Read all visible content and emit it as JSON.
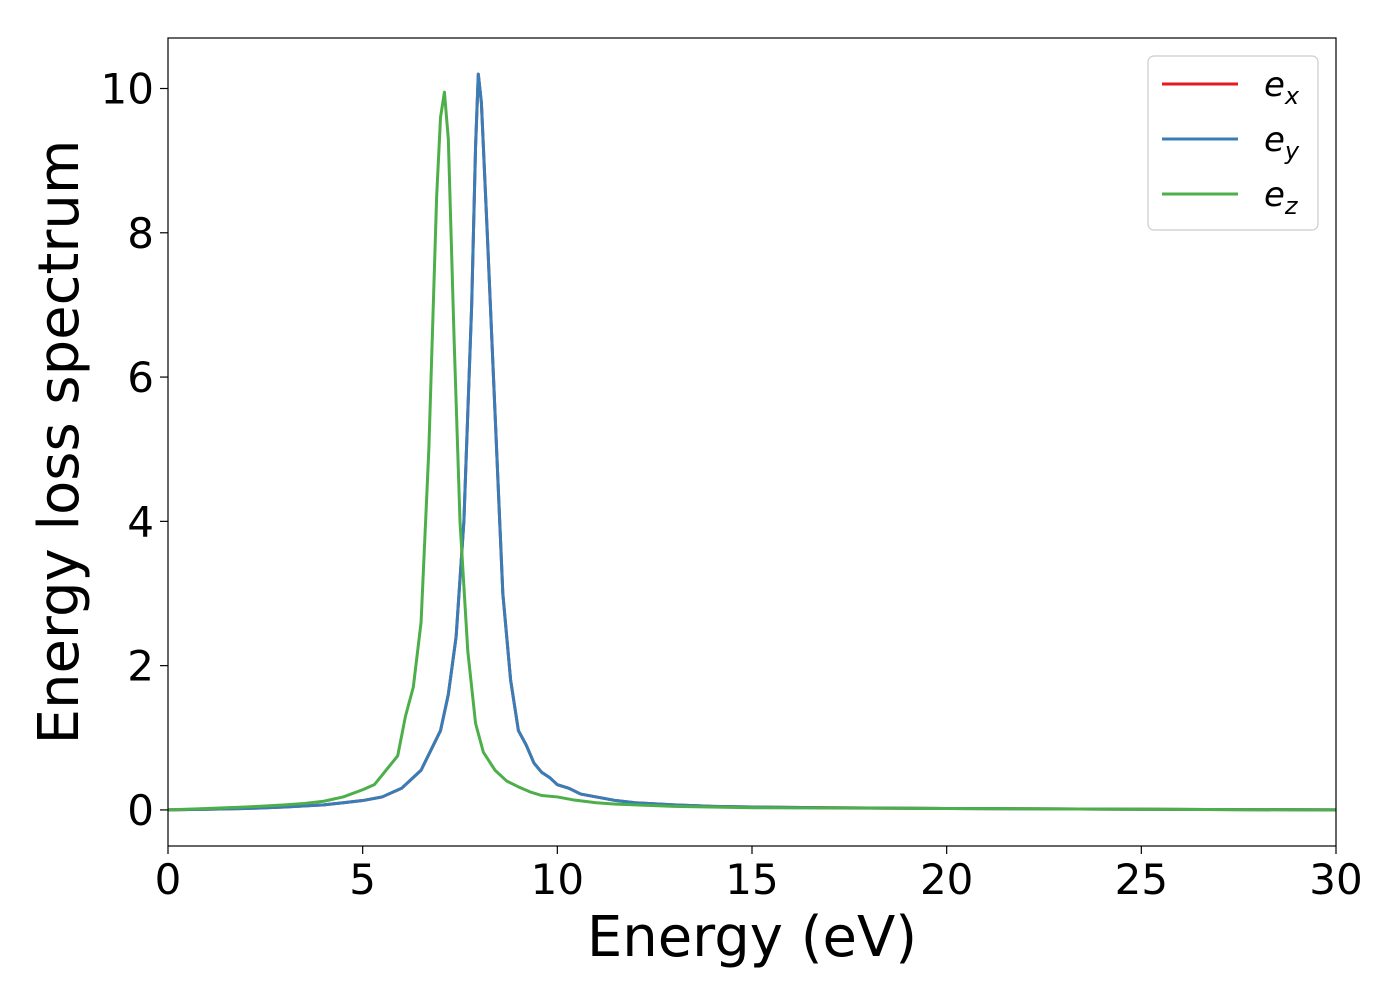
{
  "chart_data": {
    "type": "line",
    "xlabel": "Energy (eV)",
    "ylabel": "Energy loss spectrum",
    "xlim": [
      0,
      30
    ],
    "ylim": [
      -0.5,
      10.7
    ],
    "xticks": [
      0,
      5,
      10,
      15,
      20,
      25,
      30
    ],
    "yticks": [
      0,
      2,
      4,
      6,
      8,
      10
    ],
    "grid": false,
    "legend": "top-right",
    "series": [
      {
        "name": "e_x",
        "base": "e",
        "sub": "x",
        "color": "#e41a1c",
        "x": [
          0,
          1,
          2,
          3,
          4,
          4.5,
          5,
          5.5,
          6,
          6.5,
          7,
          7.2,
          7.4,
          7.6,
          7.8,
          7.9,
          7.97,
          8.05,
          8.2,
          8.4,
          8.6,
          8.8,
          9.0,
          9.2,
          9.4,
          9.6,
          9.8,
          10,
          10.3,
          10.6,
          11,
          11.5,
          12,
          13,
          14,
          15,
          17,
          20,
          25,
          30
        ],
        "y": [
          0,
          0.01,
          0.02,
          0.04,
          0.07,
          0.1,
          0.13,
          0.18,
          0.3,
          0.55,
          1.1,
          1.6,
          2.4,
          4.0,
          7.0,
          9.2,
          10.2,
          9.8,
          8.0,
          5.5,
          3.0,
          1.8,
          1.1,
          0.9,
          0.65,
          0.52,
          0.45,
          0.35,
          0.3,
          0.22,
          0.18,
          0.13,
          0.1,
          0.07,
          0.05,
          0.04,
          0.03,
          0.02,
          0.01,
          0.0
        ]
      },
      {
        "name": "e_y",
        "base": "e",
        "sub": "y",
        "color": "#377eb8",
        "x": [
          0,
          1,
          2,
          3,
          4,
          4.5,
          5,
          5.5,
          6,
          6.5,
          7,
          7.2,
          7.4,
          7.6,
          7.8,
          7.9,
          7.97,
          8.05,
          8.2,
          8.4,
          8.6,
          8.8,
          9.0,
          9.2,
          9.4,
          9.6,
          9.8,
          10,
          10.3,
          10.6,
          11,
          11.5,
          12,
          13,
          14,
          15,
          17,
          20,
          25,
          30
        ],
        "y": [
          0,
          0.01,
          0.02,
          0.04,
          0.07,
          0.1,
          0.13,
          0.18,
          0.3,
          0.55,
          1.1,
          1.6,
          2.4,
          4.0,
          7.0,
          9.2,
          10.2,
          9.8,
          8.0,
          5.5,
          3.0,
          1.8,
          1.1,
          0.9,
          0.65,
          0.52,
          0.45,
          0.35,
          0.3,
          0.22,
          0.18,
          0.13,
          0.1,
          0.07,
          0.05,
          0.04,
          0.03,
          0.02,
          0.01,
          0.0
        ]
      },
      {
        "name": "e_z",
        "base": "e",
        "sub": "z",
        "color": "#4daf4a",
        "x": [
          0,
          1,
          2,
          3,
          3.5,
          4,
          4.5,
          5,
          5.3,
          5.6,
          5.9,
          6.1,
          6.3,
          6.5,
          6.7,
          6.9,
          7.0,
          7.1,
          7.2,
          7.35,
          7.5,
          7.7,
          7.9,
          8.1,
          8.4,
          8.7,
          9.0,
          9.3,
          9.6,
          10,
          10.4,
          11,
          11.5,
          12,
          13,
          15,
          20,
          25,
          30
        ],
        "y": [
          0,
          0.02,
          0.04,
          0.07,
          0.09,
          0.12,
          0.18,
          0.28,
          0.35,
          0.55,
          0.75,
          1.3,
          1.7,
          2.6,
          5.0,
          8.5,
          9.6,
          9.95,
          9.3,
          6.5,
          4.0,
          2.2,
          1.2,
          0.8,
          0.55,
          0.4,
          0.32,
          0.25,
          0.2,
          0.18,
          0.14,
          0.1,
          0.08,
          0.07,
          0.05,
          0.03,
          0.02,
          0.01,
          0.0
        ]
      }
    ]
  }
}
